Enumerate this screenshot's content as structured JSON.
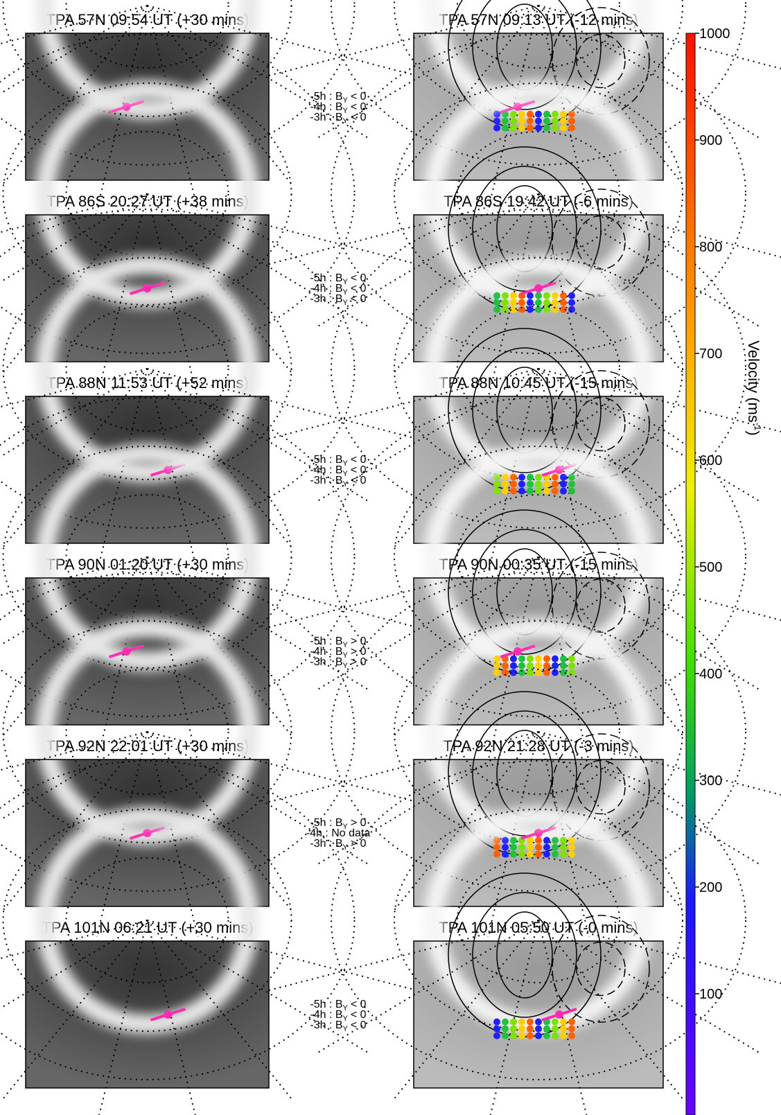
{
  "panels": [
    {
      "left_title": "TPA 57N 09:54 UT (+30 mins)",
      "right_title": "TPA 57N 09:13 UT (-12 mins)",
      "imf": [
        {
          "prefix": "-5h : B",
          "sub": "Y",
          "suffix": "< 0"
        },
        {
          "prefix": "-4h : B",
          "sub": "Y",
          "suffix": "< 0"
        },
        {
          "prefix": "-3h : B",
          "sub": "Y",
          "suffix": "< 0"
        }
      ]
    },
    {
      "left_title": "TPA 86S 20:27 UT (+38 mins)",
      "right_title": "TPA 86S 19:42 UT (-6 mins)",
      "imf": [
        {
          "prefix": "-5h : B",
          "sub": "Y",
          "suffix": "< 0"
        },
        {
          "prefix": "-4h : B",
          "sub": "Y",
          "suffix": "< 0"
        },
        {
          "prefix": "-3h : B",
          "sub": "Y",
          "suffix": "< 0"
        }
      ]
    },
    {
      "left_title": "TPA 88N 11:53 UT (+52 mins)",
      "right_title": "TPA 88N 10:45 UT (-15 mins)",
      "imf": [
        {
          "prefix": "-5h : B",
          "sub": "Y",
          "suffix": "< 0"
        },
        {
          "prefix": "-4h : B",
          "sub": "Y",
          "suffix": "< 0"
        },
        {
          "prefix": "-3h : B",
          "sub": "Y",
          "suffix": "< 0"
        }
      ]
    },
    {
      "left_title": "TPA 90N 01:20 UT (+30 mins)",
      "right_title": "TPA 90N 00:35 UT (-15 mins)",
      "imf": [
        {
          "prefix": "-5h : B",
          "sub": "Y",
          "suffix": "> 0"
        },
        {
          "prefix": "-4h : B",
          "sub": "Y",
          "suffix": "> 0"
        },
        {
          "prefix": "-3h : B",
          "sub": "Y",
          "suffix": "> 0"
        }
      ]
    },
    {
      "left_title": "TPA 92N 22:01 UT (+30 mins)",
      "right_title": "TPA 92N 21:28 UT (-3 mins)",
      "imf": [
        {
          "prefix": "-5h : B",
          "sub": "Y",
          "suffix": "> 0"
        },
        {
          "prefix": "-4h : No data"
        },
        {
          "prefix": "-3h : B",
          "sub": "Y",
          "suffix": "> 0"
        }
      ]
    },
    {
      "left_title": "TPA 101N 06:21 UT (+30 mins)",
      "right_title": "TPA 101N 05:50 UT (-0 mins)",
      "imf": [
        {
          "prefix": "-5h : B",
          "sub": "Y",
          "suffix": "< 0"
        },
        {
          "prefix": "-4h : B",
          "sub": "Y",
          "suffix": "< 0"
        },
        {
          "prefix": "-3h : B",
          "sub": "Y",
          "suffix": "< 0"
        }
      ]
    }
  ],
  "colorbar": {
    "lim": [
      0,
      1000
    ],
    "ticks": [
      100,
      200,
      300,
      400,
      500,
      600,
      700,
      800,
      900,
      1000
    ],
    "label": "Velocity (ms",
    "label_sup": "-1",
    "label_end": ")"
  }
}
